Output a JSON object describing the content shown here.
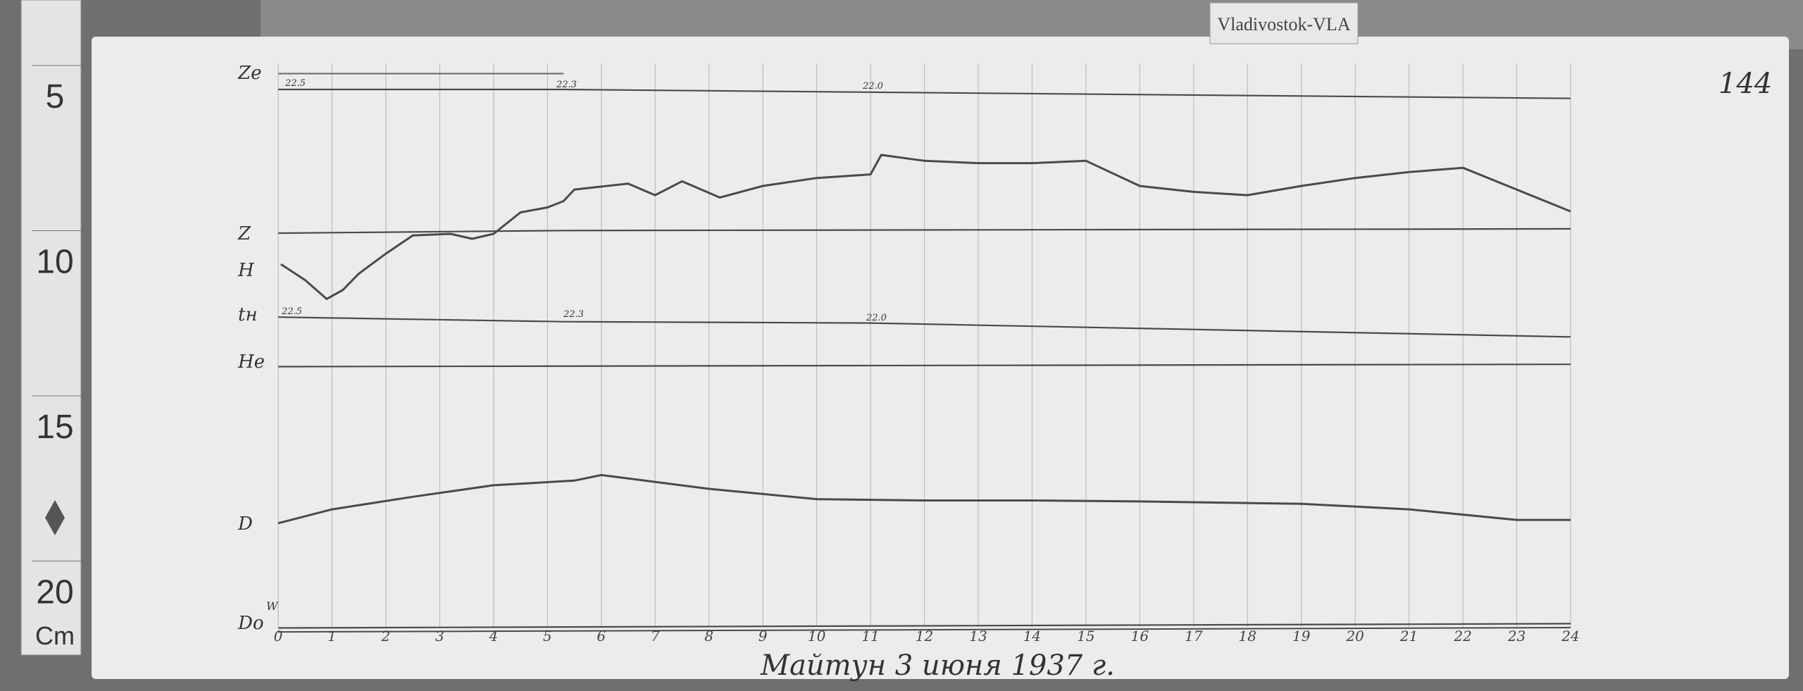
{
  "station_card": "Vladivostok-VLA",
  "sheet_number": "144",
  "caption": "Майтун   3 июня 1937 г.",
  "ruler": {
    "labels": [
      "5",
      "10",
      "15",
      "20"
    ],
    "unit": "Cm"
  },
  "colors": {
    "paper": "#ececec",
    "trace": "#4a4a4a",
    "background": "#6f6f6f",
    "grid": "#bdbdbd"
  },
  "chart_data": {
    "type": "line",
    "title": "",
    "xlabel": "",
    "ylabel": "",
    "x_unit": "hour",
    "y_unit": "cm (left ruler)",
    "xlim": [
      0,
      24
    ],
    "x_ticks": [
      "0",
      "1",
      "2",
      "3",
      "4",
      "5",
      "6",
      "7",
      "8",
      "9",
      "10",
      "11",
      "12",
      "13",
      "14",
      "15",
      "16",
      "17",
      "18",
      "19",
      "20",
      "21",
      "22",
      "23",
      "24"
    ],
    "grid": "vertical hourly lines",
    "channel_labels": {
      "Ze": "Ze",
      "Z": "Z",
      "H": "H",
      "tH": "tн",
      "He": "Hе",
      "D": "D",
      "Do": "Do",
      "Do_sup": "W"
    },
    "annotations": {
      "temp_start": "22.5",
      "temp_mid": "22.3",
      "temp_late": "22.0"
    },
    "series": [
      {
        "name": "H",
        "points": [
          [
            0.05,
            10.12
          ],
          [
            0.5,
            10.6
          ],
          [
            0.9,
            11.17
          ],
          [
            1.2,
            10.9
          ],
          [
            1.5,
            10.4
          ],
          [
            2,
            9.8
          ],
          [
            2.5,
            9.25
          ],
          [
            3.2,
            9.2
          ],
          [
            3.6,
            9.35
          ],
          [
            4,
            9.2
          ],
          [
            4.5,
            8.55
          ],
          [
            5,
            8.4
          ],
          [
            5.3,
            8.21
          ],
          [
            5.5,
            7.86
          ],
          [
            6.5,
            7.68
          ],
          [
            7,
            8.03
          ],
          [
            7.5,
            7.61
          ],
          [
            8.2,
            8.1
          ],
          [
            9,
            7.75
          ],
          [
            10,
            7.51
          ],
          [
            11,
            7.4
          ],
          [
            11.2,
            6.81
          ],
          [
            12,
            6.99
          ],
          [
            13,
            7.06
          ],
          [
            14,
            7.06
          ],
          [
            15,
            6.99
          ],
          [
            16,
            7.75
          ],
          [
            17,
            7.93
          ],
          [
            18,
            8.03
          ],
          [
            19,
            7.75
          ],
          [
            20,
            7.51
          ],
          [
            21,
            7.33
          ],
          [
            22,
            7.2
          ],
          [
            23,
            7.86
          ],
          [
            24,
            8.52
          ]
        ]
      },
      {
        "name": "D",
        "points": [
          [
            0,
            17.96
          ],
          [
            1,
            17.54
          ],
          [
            2.5,
            17.16
          ],
          [
            4,
            16.81
          ],
          [
            5.5,
            16.67
          ],
          [
            6,
            16.5
          ],
          [
            8,
            16.92
          ],
          [
            10,
            17.23
          ],
          [
            12,
            17.27
          ],
          [
            14,
            17.27
          ],
          [
            16,
            17.3
          ],
          [
            19,
            17.37
          ],
          [
            21,
            17.54
          ],
          [
            23,
            17.86
          ],
          [
            24,
            17.86
          ]
        ]
      },
      {
        "name": "Z",
        "points": [
          [
            0,
            9.18
          ],
          [
            5.3,
            9.1
          ],
          [
            24,
            9.05
          ]
        ]
      },
      {
        "name": "tH",
        "points": [
          [
            0,
            11.72
          ],
          [
            5.3,
            11.86
          ],
          [
            11,
            11.9
          ],
          [
            24,
            12.32
          ]
        ]
      },
      {
        "name": "He",
        "points": [
          [
            0,
            13.22
          ],
          [
            24,
            13.15
          ]
        ]
      },
      {
        "name": "Ze",
        "points": [
          [
            0,
            4.83
          ],
          [
            5.3,
            4.83
          ],
          [
            24,
            5.1
          ]
        ]
      },
      {
        "name": "Do",
        "points": [
          [
            0,
            21.13
          ],
          [
            24,
            21.0
          ]
        ]
      }
    ]
  }
}
